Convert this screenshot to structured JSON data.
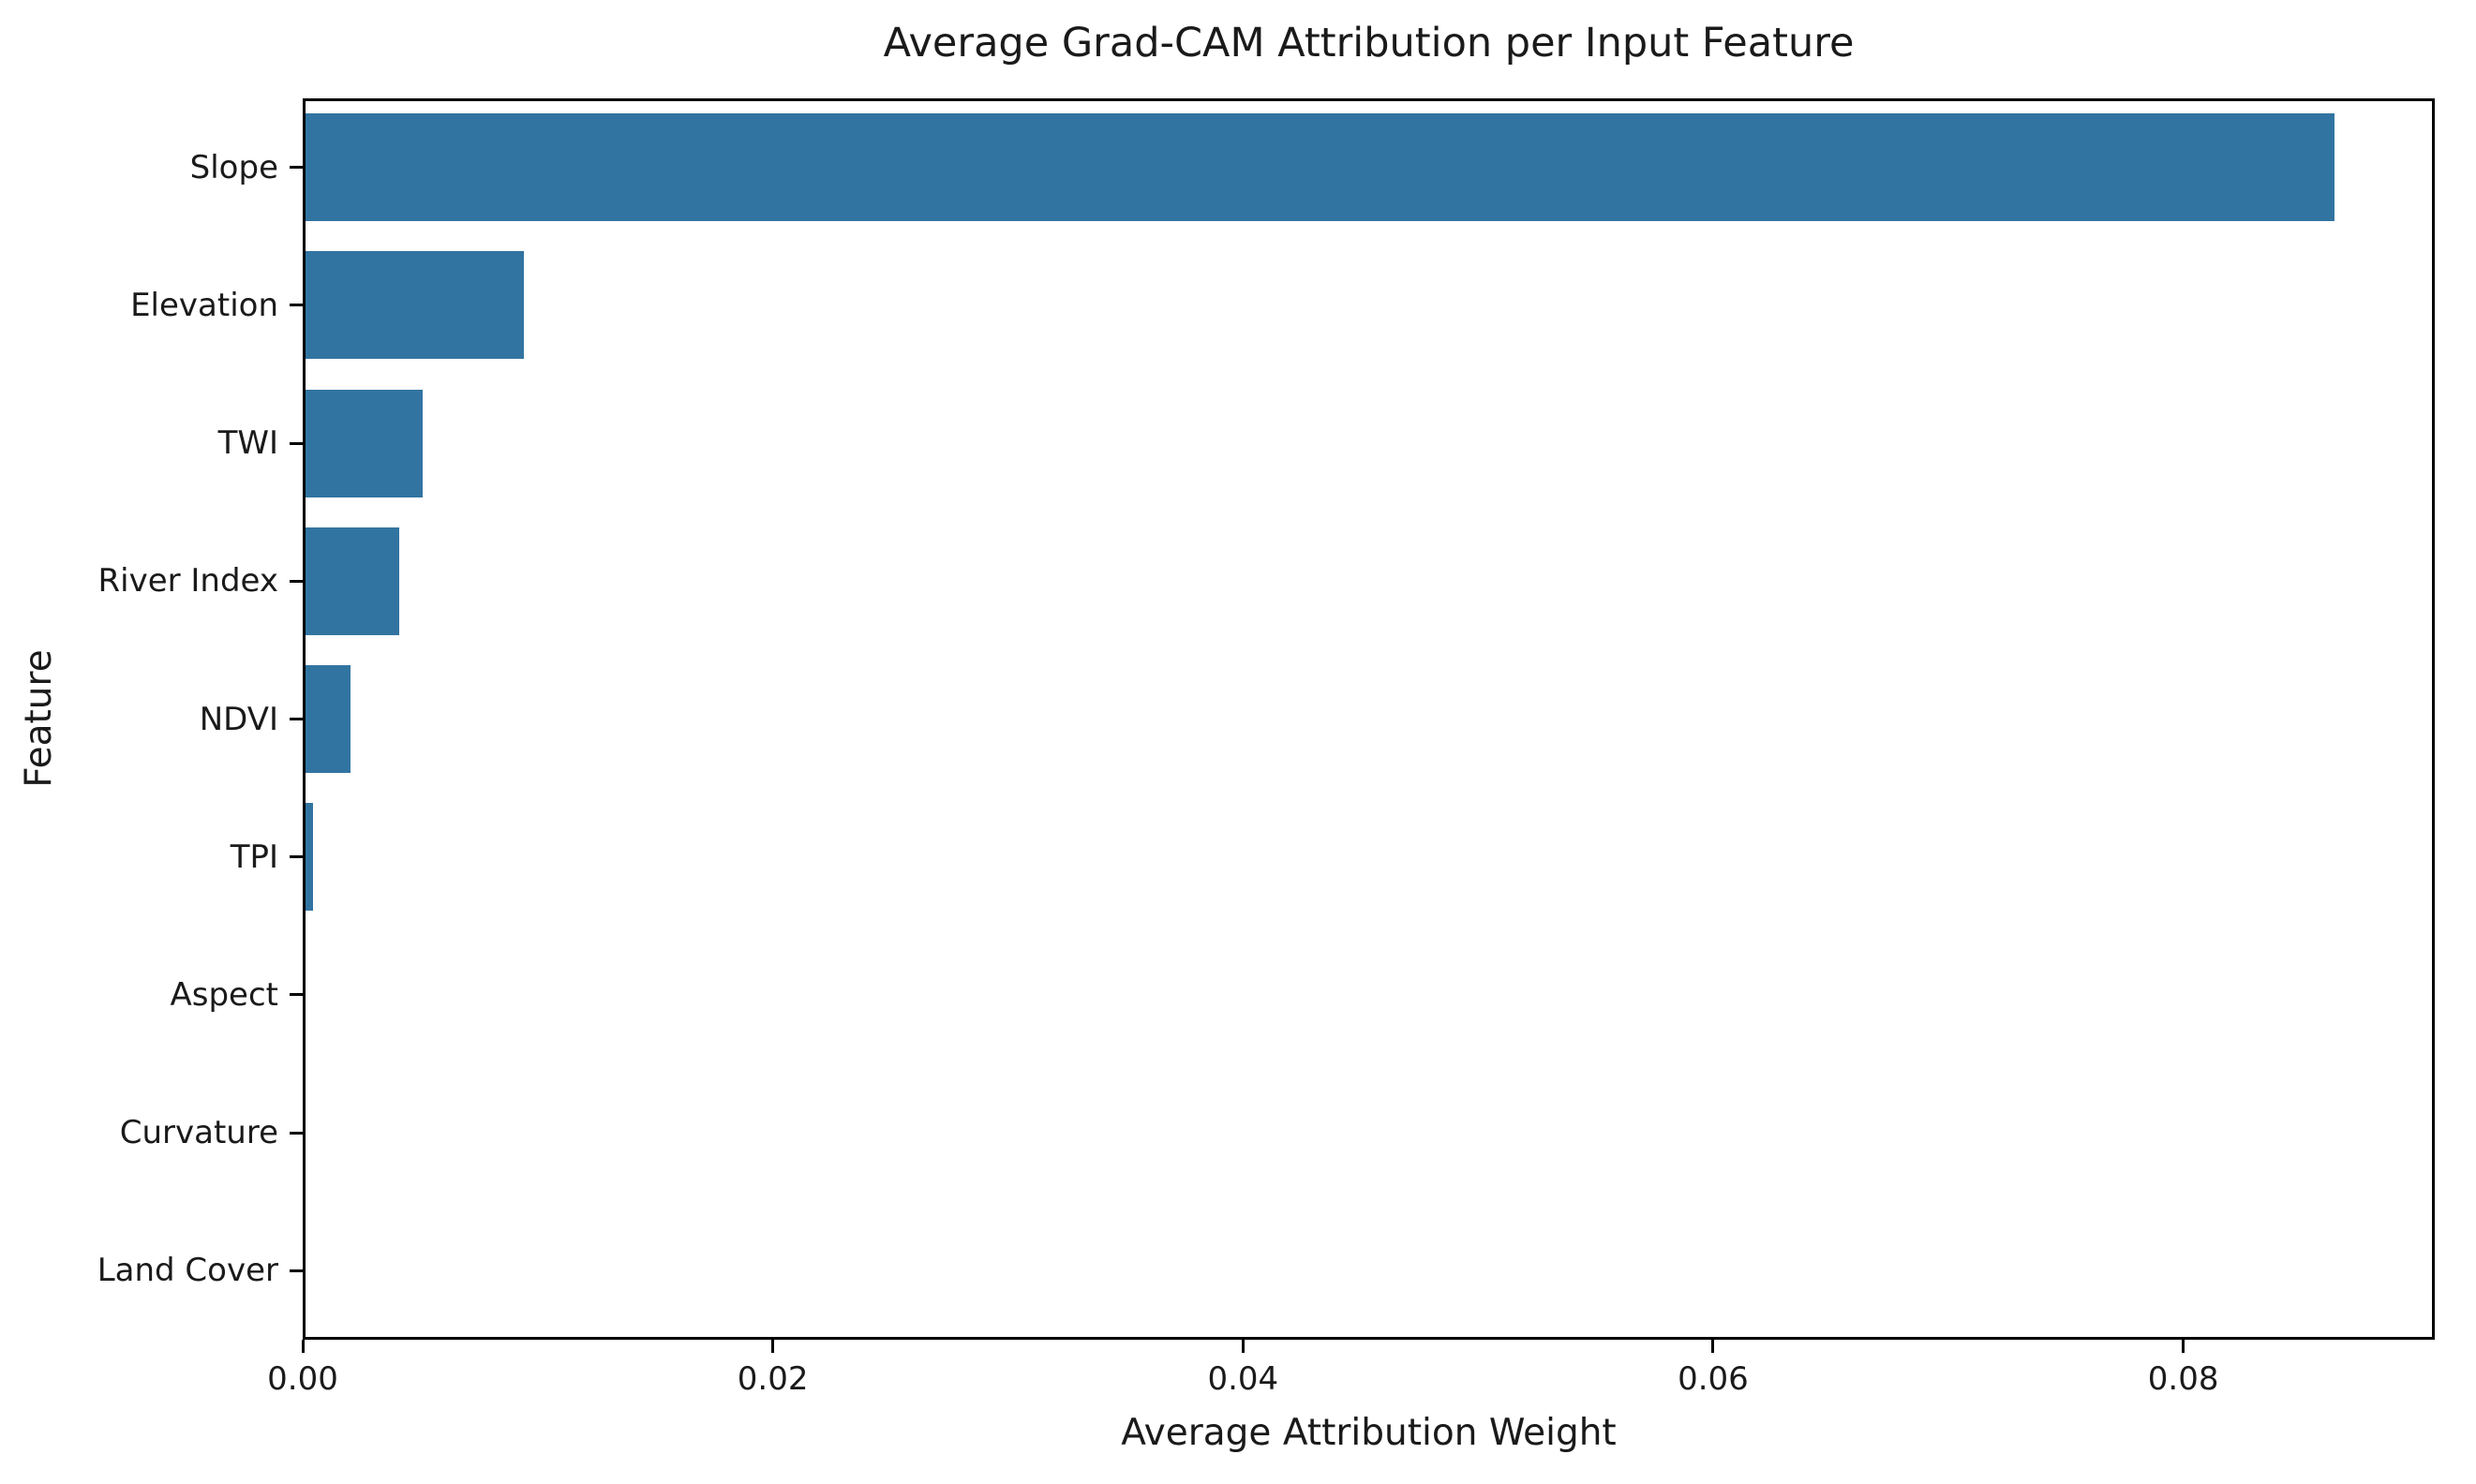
{
  "chart_data": {
    "type": "bar",
    "orientation": "horizontal",
    "title": "Average Grad-CAM Attribution per Input Feature",
    "xlabel": "Average Attribution Weight",
    "ylabel": "Feature",
    "categories": [
      "Slope",
      "Elevation",
      "TWI",
      "River Index",
      "NDVI",
      "TPI",
      "Aspect",
      "Curvature",
      "Land Cover"
    ],
    "values": [
      0.0863,
      0.0093,
      0.005,
      0.004,
      0.0019,
      0.0003,
      0.0,
      0.0,
      0.0
    ],
    "xlim": [
      0.0,
      0.0907
    ],
    "xticks": [
      0.0,
      0.02,
      0.04,
      0.06,
      0.08
    ],
    "xtick_labels": [
      "0.00",
      "0.02",
      "0.04",
      "0.06",
      "0.08"
    ],
    "bar_color": "#3274a1",
    "spine_color": "#000000",
    "grid": false,
    "legend": null
  }
}
